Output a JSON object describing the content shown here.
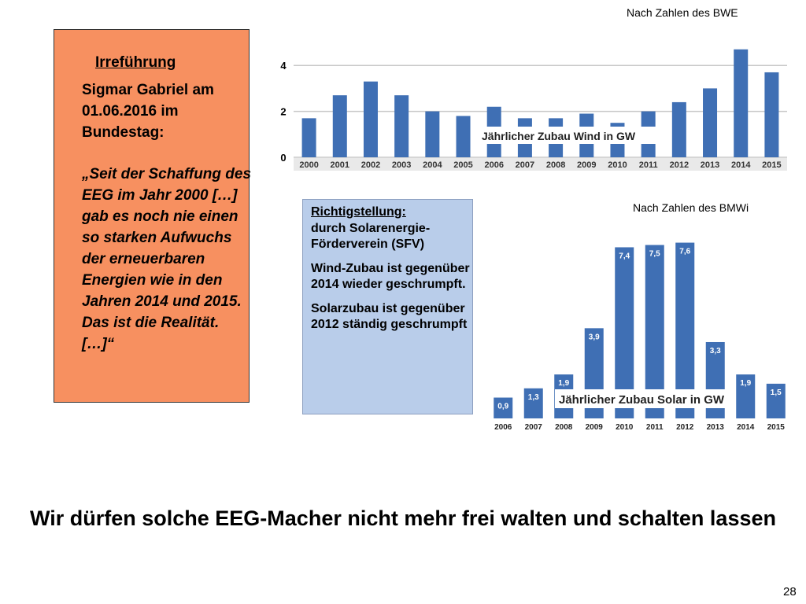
{
  "quote": {
    "heading": "Irreführung",
    "speaker": "Sigmar Gabriel am 01.06.2016 im Bundestag:",
    "text": "„Seit der Schaffung des EEG im Jahr 2000 […] gab es noch nie einen so starken Aufwuchs der erneuerbaren Energien wie in den Jahren 2014 und 2015. Das ist die Realität. […]“"
  },
  "correction": {
    "heading": "Richtigstellung:",
    "line1": "durch Solarenergie-",
    "line2": "Förderverein (SFV)",
    "wind": "Wind-Zubau ist gegenüber  2014 wieder geschrumpft.",
    "solar": "Solarzubau ist gegenüber 2012 ständig geschrumpft"
  },
  "footer": "Wir dürfen solche EEG-Macher nicht mehr frei walten und schalten lassen",
  "page_number": "28",
  "colors": {
    "bar": "#3f6fb4",
    "quote_box": "#f79060",
    "correction_box": "#b9cdea"
  },
  "chart_data": [
    {
      "type": "bar",
      "source_note": "Nach Zahlen des BWE",
      "caption": "Jährlicher Zubau Wind in GW",
      "categories": [
        "2000",
        "2001",
        "2002",
        "2003",
        "2004",
        "2005",
        "2006",
        "2007",
        "2008",
        "2009",
        "2010",
        "2011",
        "2012",
        "2013",
        "2014",
        "2015"
      ],
      "values": [
        1.7,
        2.7,
        3.3,
        2.7,
        2.0,
        1.8,
        2.2,
        1.7,
        1.7,
        1.9,
        1.5,
        2.0,
        2.4,
        3.0,
        4.7,
        3.7
      ],
      "yticks": [
        0,
        2,
        4
      ],
      "ylim": [
        0,
        5
      ],
      "grid": true
    },
    {
      "type": "bar",
      "source_note": "Nach Zahlen des BMWi",
      "caption": "Jährlicher Zubau Solar in GW",
      "categories": [
        "2006",
        "2007",
        "2008",
        "2009",
        "2010",
        "2011",
        "2012",
        "2013",
        "2014",
        "2015"
      ],
      "values": [
        0.9,
        1.3,
        1.9,
        3.9,
        7.4,
        7.5,
        7.6,
        3.3,
        1.9,
        1.5
      ],
      "value_labels": [
        "0,9",
        "1,3",
        "1,9",
        "3,9",
        "7,4",
        "7,5",
        "7,6",
        "3,3",
        "1,9",
        "1,5"
      ],
      "ylim": [
        0,
        8.2
      ],
      "grid": false
    }
  ]
}
